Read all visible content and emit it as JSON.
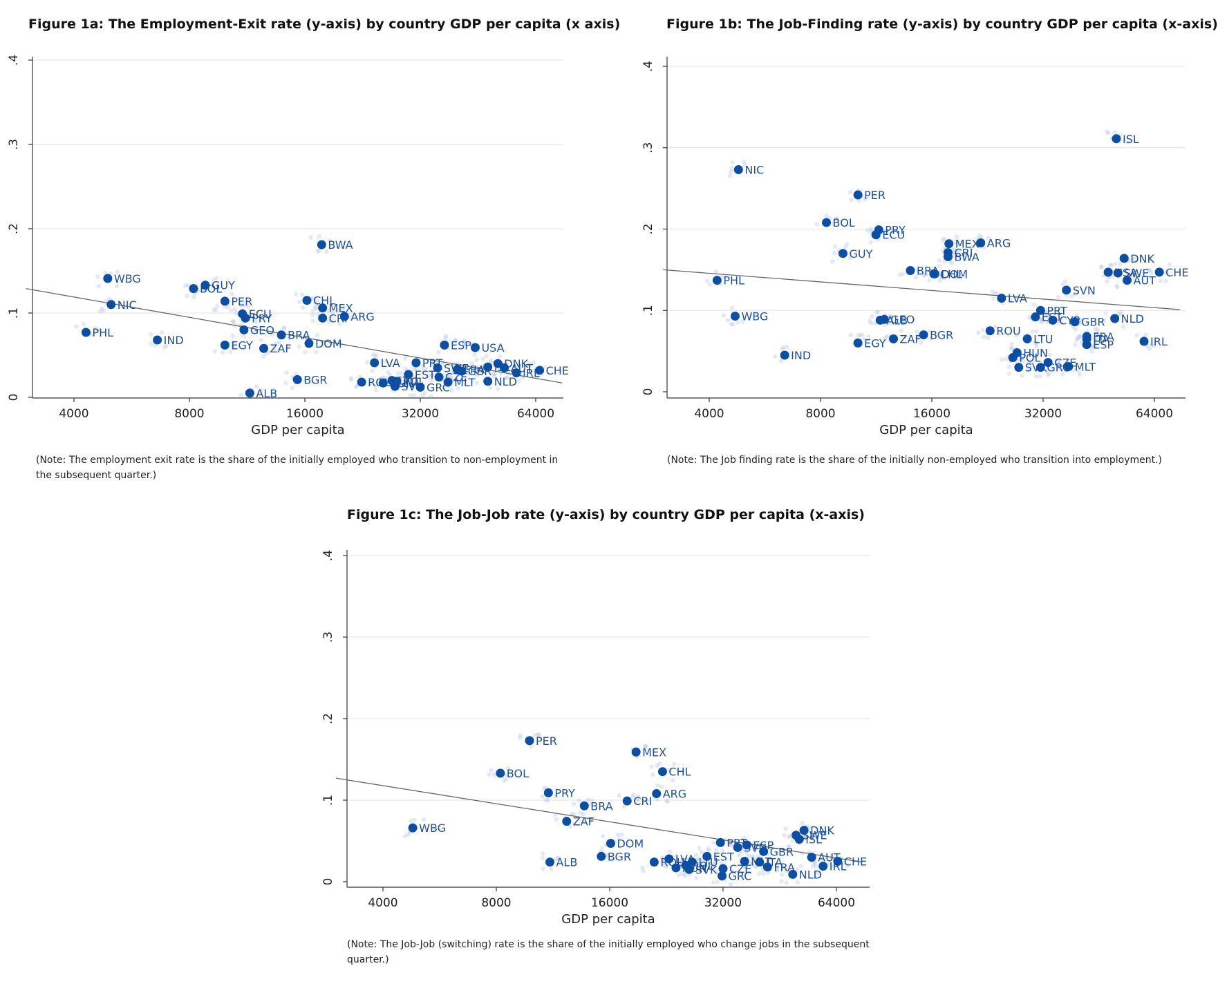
{
  "chart_data": [
    {
      "type": "scatter",
      "title": "Figure 1a: The Employment-Exit rate (y-axis) by country GDP per capita (x axis)",
      "xlabel": "GDP per capita",
      "ylabel": "",
      "x_scale": "log2",
      "xlim": [
        3000,
        80000
      ],
      "ylim": [
        0,
        0.4
      ],
      "x_ticks": [
        {
          "v": 4000,
          "label": "4000"
        },
        {
          "v": 8000,
          "label": "8000"
        },
        {
          "v": 16000,
          "label": "16000"
        },
        {
          "v": 32000,
          "label": "32000"
        },
        {
          "v": 64000,
          "label": "64000"
        }
      ],
      "y_ticks": [
        {
          "v": 0,
          "label": "0"
        },
        {
          "v": 0.1,
          "label": ".1"
        },
        {
          "v": 0.2,
          "label": ".2"
        },
        {
          "v": 0.3,
          "label": ".3"
        },
        {
          "v": 0.4,
          "label": ".4"
        }
      ],
      "grid": true,
      "fit_line": [
        {
          "x": 3000,
          "y": 0.129
        },
        {
          "x": 75000,
          "y": 0.017
        }
      ],
      "points": [
        {
          "label": "WBG",
          "x": 4900,
          "y": 0.141
        },
        {
          "label": "NIC",
          "x": 5000,
          "y": 0.11
        },
        {
          "label": "PHL",
          "x": 4300,
          "y": 0.077
        },
        {
          "label": "IND",
          "x": 6600,
          "y": 0.068
        },
        {
          "label": "BOL",
          "x": 8200,
          "y": 0.129
        },
        {
          "label": "GUY",
          "x": 8800,
          "y": 0.133
        },
        {
          "label": "PER",
          "x": 9900,
          "y": 0.114
        },
        {
          "label": "ECU",
          "x": 11000,
          "y": 0.099
        },
        {
          "label": "PRY",
          "x": 11200,
          "y": 0.094
        },
        {
          "label": "GEO",
          "x": 11100,
          "y": 0.08
        },
        {
          "label": "EGY",
          "x": 9900,
          "y": 0.062
        },
        {
          "label": "ZAF",
          "x": 12500,
          "y": 0.058
        },
        {
          "label": "BRA",
          "x": 13900,
          "y": 0.074
        },
        {
          "label": "ALB",
          "x": 11500,
          "y": 0.005
        },
        {
          "label": "BGR",
          "x": 15300,
          "y": 0.021
        },
        {
          "label": "DOM",
          "x": 16400,
          "y": 0.064
        },
        {
          "label": "CHL",
          "x": 16200,
          "y": 0.115
        },
        {
          "label": "MEX",
          "x": 17800,
          "y": 0.106
        },
        {
          "label": "CRI",
          "x": 17800,
          "y": 0.094
        },
        {
          "label": "BWA",
          "x": 17700,
          "y": 0.181
        },
        {
          "label": "ARG",
          "x": 20300,
          "y": 0.096
        },
        {
          "label": "LVA",
          "x": 24300,
          "y": 0.041
        },
        {
          "label": "PRT",
          "x": 31200,
          "y": 0.041
        },
        {
          "label": "ESP",
          "x": 37000,
          "y": 0.062
        },
        {
          "label": "USA",
          "x": 44500,
          "y": 0.059
        },
        {
          "label": "ROU",
          "x": 22500,
          "y": 0.018
        },
        {
          "label": "EST",
          "x": 29800,
          "y": 0.027
        },
        {
          "label": "SVN",
          "x": 27500,
          "y": 0.013
        },
        {
          "label": "POL",
          "x": 27800,
          "y": 0.019
        },
        {
          "label": "LTU",
          "x": 27000,
          "y": 0.02
        },
        {
          "label": "HUN",
          "x": 25600,
          "y": 0.017
        },
        {
          "label": "GRC",
          "x": 32000,
          "y": 0.012
        },
        {
          "label": "CZE",
          "x": 35800,
          "y": 0.024
        },
        {
          "label": "MLT",
          "x": 37800,
          "y": 0.018
        },
        {
          "label": "SWE",
          "x": 35500,
          "y": 0.035
        },
        {
          "label": "FRA",
          "x": 40000,
          "y": 0.033
        },
        {
          "label": "GBR",
          "x": 41000,
          "y": 0.031
        },
        {
          "label": "ISL",
          "x": 48000,
          "y": 0.036
        },
        {
          "label": "DNK",
          "x": 51000,
          "y": 0.04
        },
        {
          "label": "AUT",
          "x": 53000,
          "y": 0.035
        },
        {
          "label": "NLD",
          "x": 48000,
          "y": 0.019
        },
        {
          "label": "IRL",
          "x": 57000,
          "y": 0.029
        },
        {
          "label": "CHE",
          "x": 65500,
          "y": 0.032
        }
      ],
      "note": "(Note: The employment exit rate is the share of the initially employed who transition to non-employment in the subsequent quarter.)"
    },
    {
      "type": "scatter",
      "title": "Figure 1b: The Job-Finding rate (y-axis) by country GDP per capita (x-axis)",
      "xlabel": "GDP per capita",
      "ylabel": "",
      "x_scale": "log2",
      "xlim": [
        3000,
        80000
      ],
      "ylim": [
        0,
        0.4
      ],
      "x_ticks": [
        {
          "v": 4000,
          "label": "4000"
        },
        {
          "v": 8000,
          "label": "8000"
        },
        {
          "v": 16000,
          "label": "16000"
        },
        {
          "v": 32000,
          "label": "32000"
        },
        {
          "v": 64000,
          "label": "64000"
        }
      ],
      "y_ticks": [
        {
          "v": 0,
          "label": "0"
        },
        {
          "v": 0.1,
          "label": ".1"
        },
        {
          "v": 0.2,
          "label": ".2"
        },
        {
          "v": 0.3,
          "label": ".3"
        },
        {
          "v": 0.4,
          "label": ".4"
        }
      ],
      "grid": true,
      "fit_line": [
        {
          "x": 3000,
          "y": 0.15
        },
        {
          "x": 75000,
          "y": 0.101
        }
      ],
      "points": [
        {
          "label": "NIC",
          "x": 4800,
          "y": 0.273
        },
        {
          "label": "PHL",
          "x": 4200,
          "y": 0.137
        },
        {
          "label": "WBG",
          "x": 4700,
          "y": 0.093
        },
        {
          "label": "IND",
          "x": 6400,
          "y": 0.045
        },
        {
          "label": "PER",
          "x": 10100,
          "y": 0.242
        },
        {
          "label": "BOL",
          "x": 8300,
          "y": 0.208
        },
        {
          "label": "PRY",
          "x": 11500,
          "y": 0.199
        },
        {
          "label": "ECU",
          "x": 11300,
          "y": 0.193
        },
        {
          "label": "GUY",
          "x": 9200,
          "y": 0.17
        },
        {
          "label": "BRA",
          "x": 14000,
          "y": 0.149
        },
        {
          "label": "DOM",
          "x": 16300,
          "y": 0.145
        },
        {
          "label": "MEX",
          "x": 17800,
          "y": 0.182
        },
        {
          "label": "CRI",
          "x": 17700,
          "y": 0.171
        },
        {
          "label": "BWA",
          "x": 17700,
          "y": 0.166
        },
        {
          "label": "CHL",
          "x": 16200,
          "y": 0.145
        },
        {
          "label": "ARG",
          "x": 21700,
          "y": 0.183
        },
        {
          "label": "ALB",
          "x": 11600,
          "y": 0.088
        },
        {
          "label": "GEO",
          "x": 11900,
          "y": 0.089
        },
        {
          "label": "EGY",
          "x": 10100,
          "y": 0.06
        },
        {
          "label": "ZAF",
          "x": 12600,
          "y": 0.065
        },
        {
          "label": "BGR",
          "x": 15200,
          "y": 0.07
        },
        {
          "label": "LVA",
          "x": 24700,
          "y": 0.115
        },
        {
          "label": "ROU",
          "x": 23000,
          "y": 0.075
        },
        {
          "label": "SVN",
          "x": 37000,
          "y": 0.125
        },
        {
          "label": "PRT",
          "x": 31500,
          "y": 0.1
        },
        {
          "label": "EST",
          "x": 30500,
          "y": 0.092
        },
        {
          "label": "CYP",
          "x": 34000,
          "y": 0.088
        },
        {
          "label": "GBR",
          "x": 39000,
          "y": 0.086
        },
        {
          "label": "LTU",
          "x": 29000,
          "y": 0.065
        },
        {
          "label": "HUN",
          "x": 27200,
          "y": 0.048
        },
        {
          "label": "POL",
          "x": 26500,
          "y": 0.042
        },
        {
          "label": "SVK",
          "x": 27500,
          "y": 0.03
        },
        {
          "label": "GRC",
          "x": 31500,
          "y": 0.03
        },
        {
          "label": "CZE",
          "x": 33000,
          "y": 0.036
        },
        {
          "label": "MLT",
          "x": 37500,
          "y": 0.031
        },
        {
          "label": "ESP",
          "x": 42000,
          "y": 0.058
        },
        {
          "label": "ITA",
          "x": 42000,
          "y": 0.065
        },
        {
          "label": "FRA",
          "x": 42000,
          "y": 0.068
        },
        {
          "label": "NLD",
          "x": 50000,
          "y": 0.09
        },
        {
          "label": "IRL",
          "x": 60000,
          "y": 0.062
        },
        {
          "label": "USA",
          "x": 48000,
          "y": 0.147
        },
        {
          "label": "SWE",
          "x": 51000,
          "y": 0.146
        },
        {
          "label": "AUT",
          "x": 54000,
          "y": 0.137
        },
        {
          "label": "DNK",
          "x": 53000,
          "y": 0.164
        },
        {
          "label": "CHE",
          "x": 66000,
          "y": 0.147
        },
        {
          "label": "ISL",
          "x": 50500,
          "y": 0.311
        }
      ],
      "note": "(Note: The Job finding rate is the share of the initially non-employed who transition into employment.)"
    },
    {
      "type": "scatter",
      "title": "Figure 1c: The Job-Job rate (y-axis) by country GDP per capita (x-axis)",
      "xlabel": "GDP per capita",
      "ylabel": "",
      "x_scale": "log2",
      "xlim": [
        3000,
        80000
      ],
      "ylim": [
        0,
        0.4
      ],
      "x_ticks": [
        {
          "v": 4000,
          "label": "4000"
        },
        {
          "v": 8000,
          "label": "8000"
        },
        {
          "v": 16000,
          "label": "16000"
        },
        {
          "v": 32000,
          "label": "32000"
        },
        {
          "v": 64000,
          "label": "64000"
        }
      ],
      "y_ticks": [
        {
          "v": 0,
          "label": "0"
        },
        {
          "v": 0.1,
          "label": ".1"
        },
        {
          "v": 0.2,
          "label": ".2"
        },
        {
          "v": 0.3,
          "label": ".3"
        },
        {
          "v": 0.4,
          "label": ".4"
        }
      ],
      "grid": true,
      "fit_line": [
        {
          "x": 3000,
          "y": 0.127
        },
        {
          "x": 75000,
          "y": 0.024
        }
      ],
      "points": [
        {
          "label": "WBG",
          "x": 4800,
          "y": 0.066
        },
        {
          "label": "PER",
          "x": 9800,
          "y": 0.173
        },
        {
          "label": "BOL",
          "x": 8200,
          "y": 0.133
        },
        {
          "label": "PRY",
          "x": 11000,
          "y": 0.109
        },
        {
          "label": "BRA",
          "x": 13700,
          "y": 0.093
        },
        {
          "label": "ZAF",
          "x": 12300,
          "y": 0.074
        },
        {
          "label": "ALB",
          "x": 11100,
          "y": 0.024
        },
        {
          "label": "BGR",
          "x": 15200,
          "y": 0.031
        },
        {
          "label": "DOM",
          "x": 16100,
          "y": 0.047
        },
        {
          "label": "CRI",
          "x": 17800,
          "y": 0.099
        },
        {
          "label": "MEX",
          "x": 18800,
          "y": 0.159
        },
        {
          "label": "CHL",
          "x": 22100,
          "y": 0.135
        },
        {
          "label": "ARG",
          "x": 21300,
          "y": 0.108
        },
        {
          "label": "ROU",
          "x": 21000,
          "y": 0.024
        },
        {
          "label": "LVA",
          "x": 23000,
          "y": 0.028
        },
        {
          "label": "HUN",
          "x": 24000,
          "y": 0.017
        },
        {
          "label": "POL",
          "x": 25500,
          "y": 0.02
        },
        {
          "label": "SVK",
          "x": 26000,
          "y": 0.015
        },
        {
          "label": "LTU",
          "x": 26500,
          "y": 0.024
        },
        {
          "label": "EST",
          "x": 29000,
          "y": 0.031
        },
        {
          "label": "CZE",
          "x": 32000,
          "y": 0.016
        },
        {
          "label": "GRC",
          "x": 31800,
          "y": 0.007
        },
        {
          "label": "PRT",
          "x": 31500,
          "y": 0.048
        },
        {
          "label": "SVN",
          "x": 35000,
          "y": 0.042
        },
        {
          "label": "ESP",
          "x": 37000,
          "y": 0.045
        },
        {
          "label": "GBR",
          "x": 41000,
          "y": 0.037
        },
        {
          "label": "MLT",
          "x": 36500,
          "y": 0.025
        },
        {
          "label": "ITA",
          "x": 40000,
          "y": 0.024
        },
        {
          "label": "FRA",
          "x": 42000,
          "y": 0.018
        },
        {
          "label": "NLD",
          "x": 49000,
          "y": 0.009
        },
        {
          "label": "AUT",
          "x": 55000,
          "y": 0.03
        },
        {
          "label": "IRL",
          "x": 59000,
          "y": 0.019
        },
        {
          "label": "CHE",
          "x": 64500,
          "y": 0.025
        },
        {
          "label": "DNK",
          "x": 52500,
          "y": 0.063
        },
        {
          "label": "SWE",
          "x": 50000,
          "y": 0.057
        },
        {
          "label": "ISL",
          "x": 51000,
          "y": 0.052
        }
      ],
      "note": "(Note: The Job-Job (switching) rate is the share of the initially employed who change jobs in the subsequent quarter.)"
    }
  ]
}
